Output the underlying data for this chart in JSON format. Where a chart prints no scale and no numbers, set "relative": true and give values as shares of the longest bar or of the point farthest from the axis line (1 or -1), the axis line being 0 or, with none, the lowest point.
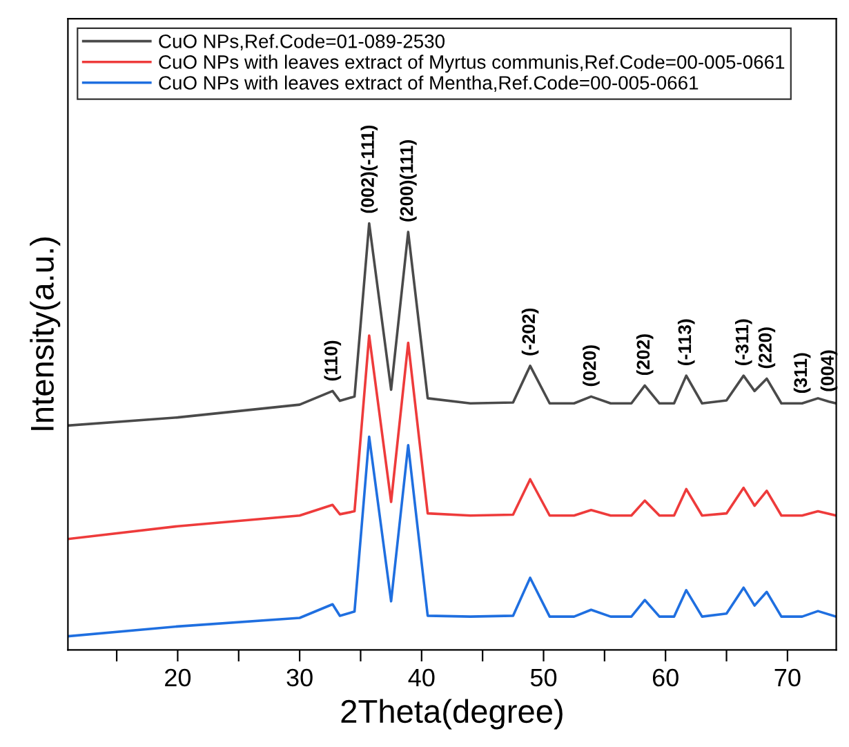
{
  "chart_data": {
    "type": "line",
    "relative": true,
    "xlabel": "2Theta(degree)",
    "ylabel": "Intensity(a.u.)",
    "xlim": [
      11,
      74
    ],
    "xticks": [
      {
        "value": 15,
        "label": null
      },
      20,
      {
        "value": 25,
        "label": null
      },
      30,
      {
        "value": 35,
        "label": null
      },
      40,
      {
        "value": 45,
        "label": null
      },
      50,
      {
        "value": 55,
        "label": null
      },
      60,
      {
        "value": 65,
        "label": null
      },
      70
    ],
    "tick_labels": "x",
    "legend": "top left",
    "grid": false,
    "series": [
      {
        "name": "CuO NPs,Ref.Code=01-089-2530",
        "color": "#4a4a4a",
        "x": [
          11,
          20,
          30,
          32.7,
          33.3,
          34.5,
          35.7,
          37.5,
          38.9,
          40.5,
          44,
          47.5,
          48.9,
          50.5,
          52.5,
          53.9,
          55.5,
          57.2,
          58.3,
          59.5,
          60.7,
          61.7,
          63,
          65,
          66.4,
          67.3,
          68.3,
          69.5,
          71.2,
          72.5,
          73.4,
          74
        ],
        "values": [
          0.526,
          0.545,
          0.575,
          0.607,
          0.584,
          0.594,
          1.0,
          0.61,
          0.98,
          0.59,
          0.578,
          0.58,
          0.666,
          0.578,
          0.578,
          0.594,
          0.578,
          0.578,
          0.62,
          0.578,
          0.578,
          0.643,
          0.578,
          0.585,
          0.643,
          0.607,
          0.636,
          0.578,
          0.578,
          0.59,
          0.582,
          0.578
        ]
      },
      {
        "name": "CuO NPs with leaves extract of Myrtus communis,Ref.Code=00-005-0661",
        "color": "#ee3b3b",
        "x": [
          11,
          20,
          30,
          32.7,
          33.3,
          34.5,
          35.7,
          37.5,
          38.9,
          40.5,
          44,
          47.5,
          48.9,
          50.5,
          52.5,
          53.9,
          55.5,
          57.2,
          58.3,
          59.5,
          60.7,
          61.7,
          63,
          65,
          66.4,
          67.3,
          68.3,
          69.5,
          71.2,
          72.5,
          74
        ],
        "values": [
          0.26,
          0.29,
          0.315,
          0.34,
          0.318,
          0.325,
          0.737,
          0.347,
          0.72,
          0.32,
          0.315,
          0.317,
          0.4,
          0.315,
          0.315,
          0.328,
          0.315,
          0.315,
          0.35,
          0.315,
          0.315,
          0.377,
          0.315,
          0.32,
          0.38,
          0.338,
          0.373,
          0.315,
          0.315,
          0.325,
          0.315
        ]
      },
      {
        "name": "CuO NPs with leaves extract of Mentha,Ref.Code=00-005-0661",
        "color": "#1f6fe0",
        "x": [
          11,
          20,
          30,
          32.7,
          33.3,
          34.5,
          35.7,
          37.5,
          38.9,
          40.5,
          44,
          47.5,
          48.9,
          50.5,
          52.5,
          53.9,
          55.5,
          57.2,
          58.3,
          59.5,
          60.7,
          61.7,
          63,
          65,
          66.4,
          67.3,
          68.3,
          69.5,
          71.2,
          72.5,
          74
        ],
        "values": [
          0.032,
          0.055,
          0.075,
          0.107,
          0.08,
          0.09,
          0.5,
          0.114,
          0.48,
          0.08,
          0.078,
          0.08,
          0.169,
          0.078,
          0.078,
          0.094,
          0.078,
          0.078,
          0.117,
          0.078,
          0.078,
          0.14,
          0.078,
          0.085,
          0.146,
          0.104,
          0.136,
          0.078,
          0.078,
          0.091,
          0.078
        ]
      }
    ],
    "annotations": [
      {
        "text": "(110)",
        "x": 32.7,
        "y": 0.607
      },
      {
        "text": "(002)(-111)",
        "x": 35.7,
        "y": 1.0
      },
      {
        "text": "(200)(111)",
        "x": 38.9,
        "y": 0.98
      },
      {
        "text": "(-202)",
        "x": 48.9,
        "y": 0.666
      },
      {
        "text": "(020)",
        "x": 53.9,
        "y": 0.594
      },
      {
        "text": "(202)",
        "x": 58.3,
        "y": 0.62
      },
      {
        "text": "(-113)",
        "x": 61.7,
        "y": 0.643
      },
      {
        "text": "(-311)",
        "x": 66.4,
        "y": 0.643
      },
      {
        "text": "(220)",
        "x": 68.3,
        "y": 0.636
      },
      {
        "text": "(311)",
        "x": 71.2,
        "y": 0.578
      },
      {
        "text": "(004)",
        "x": 73.4,
        "y": 0.582
      }
    ]
  }
}
